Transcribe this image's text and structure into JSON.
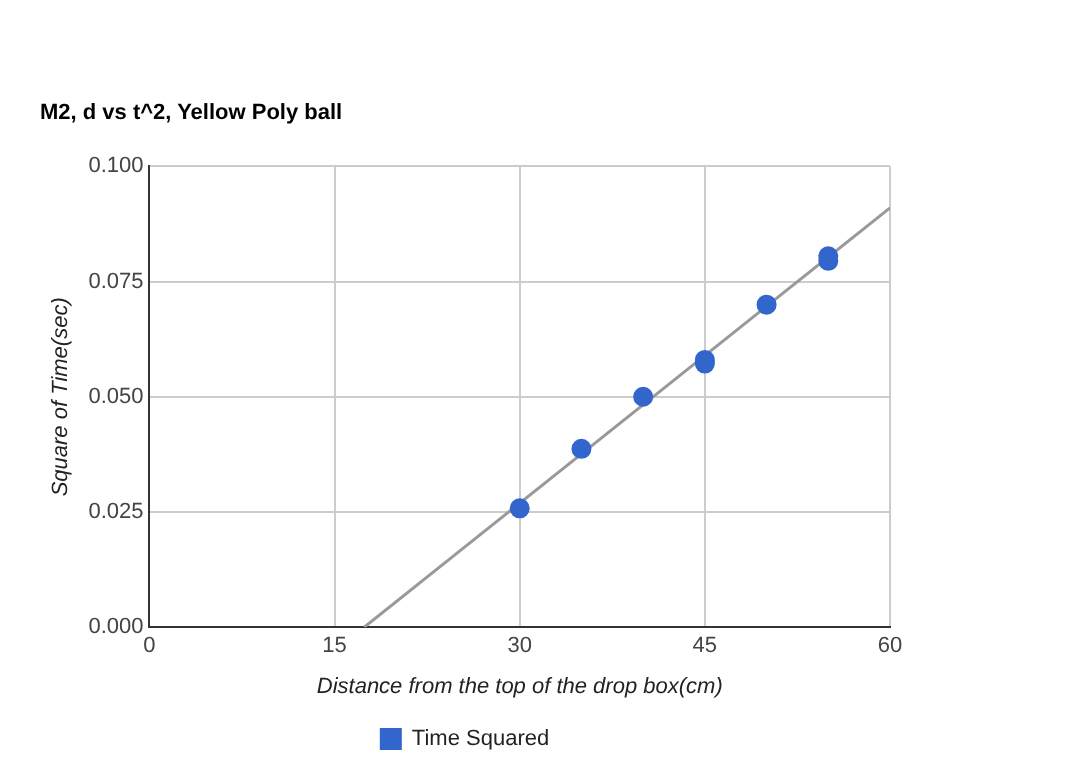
{
  "chart_data": {
    "type": "scatter",
    "title": "M2, d vs t^2, Yellow Poly ball",
    "xlabel": "Distance from the top of the drop box(cm)",
    "ylabel": "Square of Time(sec)",
    "series": [
      {
        "name": "Time Squared",
        "color": "#3366cc",
        "x": [
          30,
          35,
          40,
          45,
          45,
          50,
          55,
          55
        ],
        "values": [
          0.0258,
          0.0387,
          0.05,
          0.058,
          0.0572,
          0.07,
          0.0805,
          0.0795
        ]
      },
      {
        "type": "line",
        "color": "#999999",
        "x": [
          17.4,
          60
        ],
        "values": [
          0,
          0.091
        ],
        "marker": "none"
      }
    ],
    "xlim": [
      0,
      60
    ],
    "xticks": [
      0,
      15,
      30,
      45,
      60
    ],
    "ylim": [
      0,
      0.1
    ],
    "yticks": [
      {
        "value": 0,
        "label": "0.000"
      },
      {
        "value": 0.025,
        "label": "0.025"
      },
      {
        "value": 0.05,
        "label": "0.050"
      },
      {
        "value": 0.075,
        "label": "0.075"
      },
      {
        "value": 0.1,
        "label": "0.100"
      }
    ],
    "grid": true,
    "legend": "bottom",
    "marker": "circle"
  }
}
